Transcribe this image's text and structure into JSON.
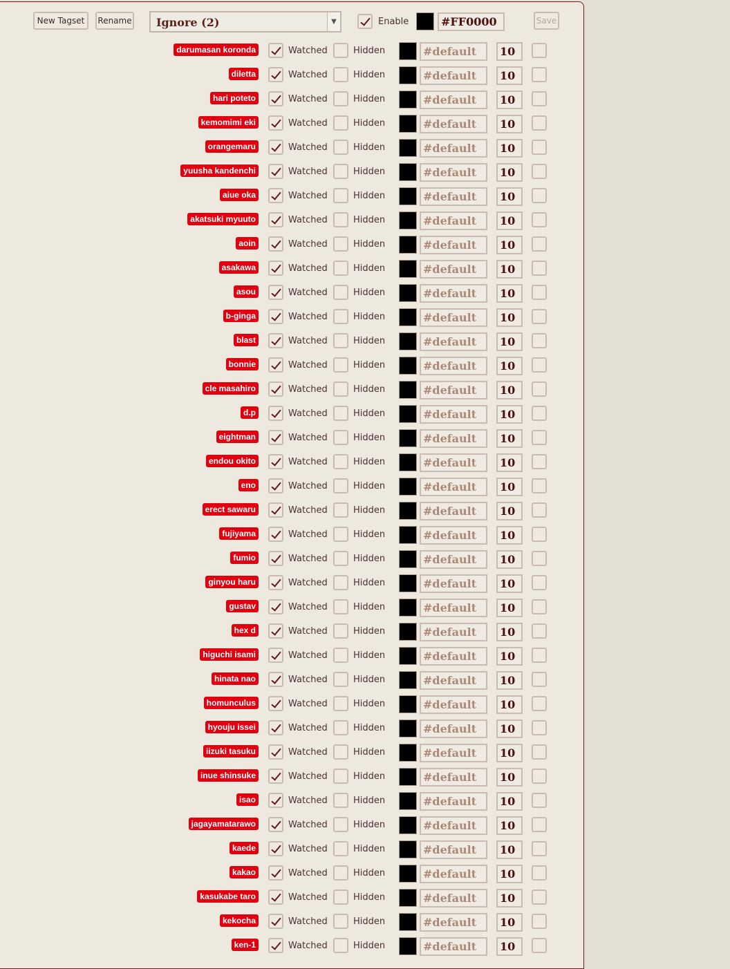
{
  "toolbar": {
    "new_tagset_label": "New Tagset",
    "rename_label": "Rename",
    "tagset_selected": "Ignore (2)",
    "enable_label": "Enable",
    "enable_checked": true,
    "color_swatch": "#000000",
    "color_value": "#FF0000",
    "save_label": "Save"
  },
  "row_defaults": {
    "watched_label": "Watched",
    "watched_checked": true,
    "hidden_label": "Hidden",
    "hidden_checked": false,
    "color_swatch": "#000000",
    "color_value": "#default",
    "size_value": "10"
  },
  "tags": [
    "darumasan koronda",
    "diletta",
    "hari poteto",
    "kemomimi eki",
    "orangemaru",
    "yuusha kandenchi",
    "aiue oka",
    "akatsuki myuuto",
    "aoin",
    "asakawa",
    "asou",
    "b-ginga",
    "blast",
    "bonnie",
    "cle masahiro",
    "d.p",
    "eightman",
    "endou okito",
    "eno",
    "erect sawaru",
    "fujiyama",
    "fumio",
    "ginyou haru",
    "gustav",
    "hex d",
    "higuchi isami",
    "hinata nao",
    "homunculus",
    "hyouju issei",
    "iizuki tasuku",
    "inue shinsuke",
    "isao",
    "jagayamatarawo",
    "kaede",
    "kakao",
    "kasukabe taro",
    "kekocha",
    "ken-1"
  ],
  "colors": {
    "tag_bg": "#e0000f",
    "panel_bg": "#eee9df",
    "page_bg": "#e3dfd3",
    "check_mark": "#5c1a1a"
  }
}
